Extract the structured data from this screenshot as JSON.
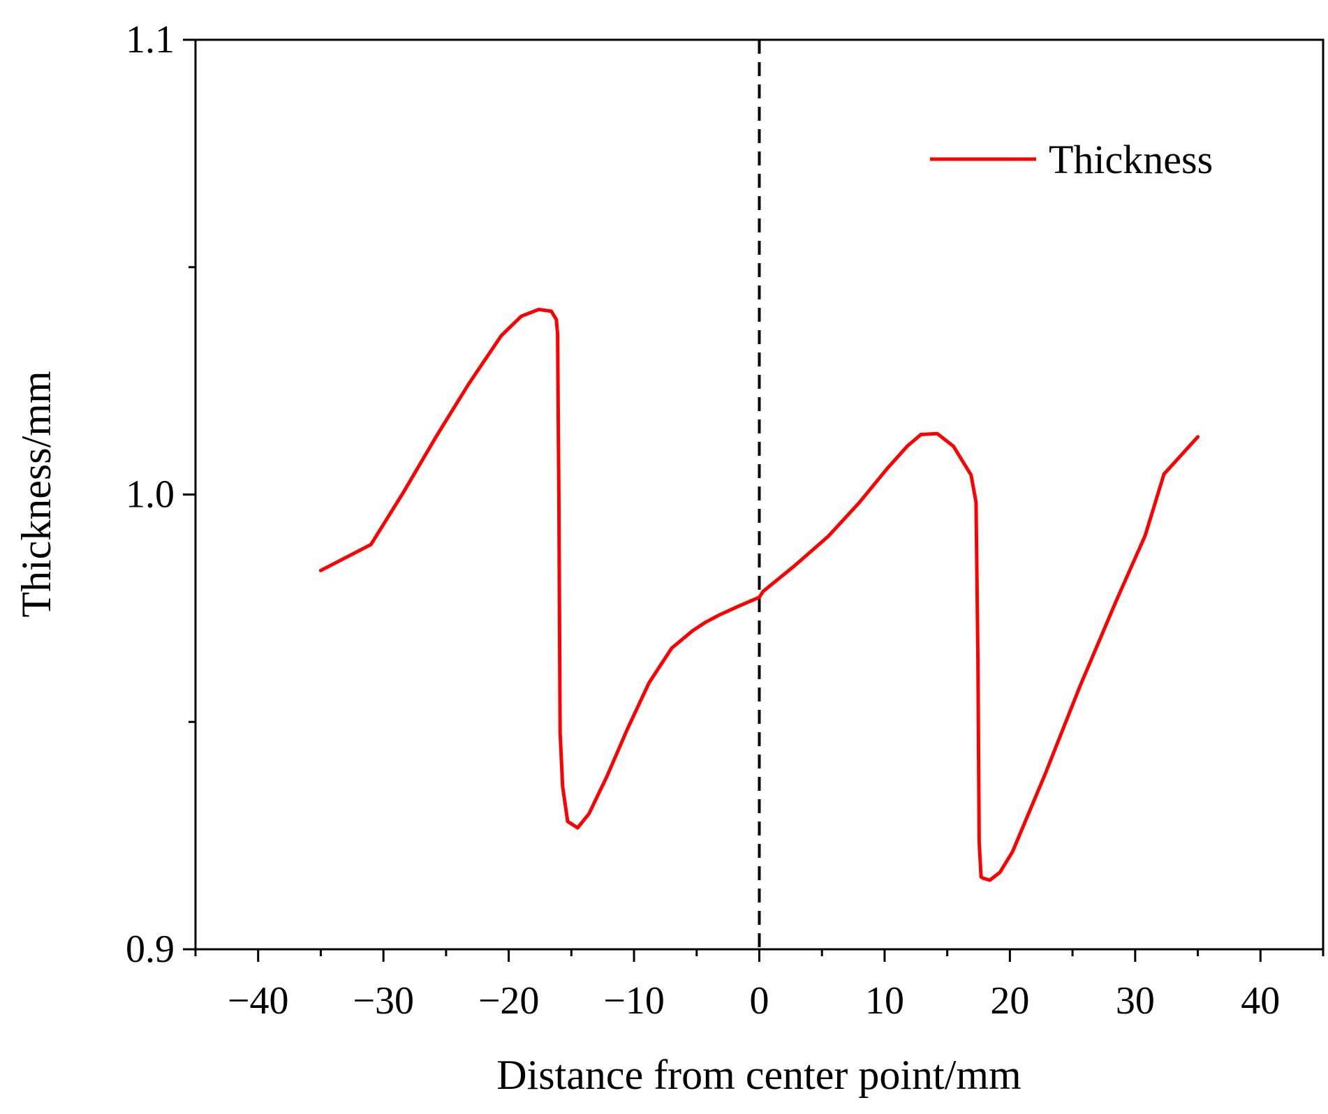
{
  "chart_data": {
    "type": "line",
    "title": "",
    "xlabel": "Distance from center point/mm",
    "ylabel": "Thickness/mm",
    "xlim": [
      -45,
      45
    ],
    "ylim": [
      0.9,
      1.1
    ],
    "x_ticks": [
      -40,
      -30,
      -20,
      -10,
      0,
      10,
      20,
      30,
      40
    ],
    "x_tick_labels": [
      "−40",
      "−30",
      "−20",
      "−10",
      "0",
      "10",
      "20",
      "30",
      "40"
    ],
    "y_ticks": [
      0.9,
      1.0,
      1.1
    ],
    "y_tick_labels": [
      "0.9",
      "1.0",
      "1.1"
    ],
    "grid": false,
    "legend_position": "top-right",
    "reference_line": {
      "x": 0,
      "style": "dashed",
      "color": "#000000"
    },
    "series": [
      {
        "name": "Thickness",
        "color": "#ff0000",
        "x": [
          -35,
          -31,
          -28.4,
          -25.8,
          -23.2,
          -20.6,
          -19,
          -17.6,
          -16.6,
          -16.2,
          -16.1,
          -16,
          -15.9,
          -15.7,
          -15.3,
          -14.5,
          -13.6,
          -12.2,
          -10.5,
          -8.8,
          -7,
          -5.3,
          -4.3,
          -3.2,
          -1.7,
          0,
          0.3,
          2.8,
          5.5,
          8,
          10.2,
          11.8,
          12.9,
          14.2,
          15.5,
          16.9,
          17.3,
          17.45,
          17.55,
          17.7,
          17.9,
          18.4,
          19.2,
          20.2,
          22.8,
          25.6,
          28.5,
          30.8,
          32.3,
          35
        ],
        "y": [
          0.9833,
          0.989,
          1.0005,
          1.0127,
          1.0243,
          1.0349,
          1.0392,
          1.0407,
          1.0403,
          1.0385,
          1.0353,
          1.0,
          0.9477,
          0.9358,
          0.9281,
          0.9267,
          0.9298,
          0.9378,
          0.9486,
          0.9586,
          0.9662,
          0.9701,
          0.9719,
          0.9735,
          0.9754,
          0.9774,
          0.9787,
          0.9843,
          0.9908,
          0.9983,
          1.0057,
          1.0106,
          1.0132,
          1.0134,
          1.0106,
          1.0043,
          0.9983,
          0.9638,
          0.9236,
          0.9159,
          0.9156,
          0.9152,
          0.9169,
          0.9214,
          0.9384,
          0.9579,
          0.9767,
          0.991,
          1.0045,
          1.0127
        ]
      }
    ]
  }
}
